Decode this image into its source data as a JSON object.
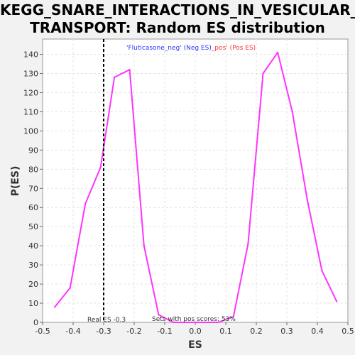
{
  "chart_data": {
    "type": "line",
    "title_line1": "KEGG_SNARE_INTERACTIONS_IN_VESICULAR_",
    "title_line2": "TRANSPORT: Random ES distribution",
    "xlabel": "ES",
    "ylabel": "P(ES)",
    "xlim": [
      -0.5,
      0.5
    ],
    "ylim": [
      0,
      148
    ],
    "x_ticks": [
      -0.5,
      -0.4,
      -0.3,
      -0.2,
      -0.1,
      0.0,
      0.1,
      0.2,
      0.3,
      0.4,
      0.5
    ],
    "x_tick_labels": [
      "-0.5",
      "-0.4",
      "-0.3",
      "-0.2",
      "-0.1",
      "0.0",
      "0.1",
      "0.2",
      "0.3",
      "0.4",
      "0.5"
    ],
    "y_ticks": [
      0,
      10,
      20,
      30,
      40,
      50,
      60,
      70,
      80,
      90,
      100,
      110,
      120,
      130,
      140
    ],
    "y_tick_labels": [
      "0",
      "10",
      "20",
      "30",
      "40",
      "50",
      "60",
      "70",
      "80",
      "90",
      "100",
      "110",
      "120",
      "130",
      "140"
    ],
    "grid": true,
    "series": [
      {
        "color": "#ff33ff",
        "x": [
          -0.46,
          -0.41,
          -0.36,
          -0.31,
          -0.265,
          -0.215,
          -0.168,
          -0.12,
          -0.072,
          0.075,
          0.125,
          0.173,
          0.222,
          0.27,
          0.318,
          0.367,
          0.415,
          0.463
        ],
        "y": [
          8,
          18,
          62,
          81,
          128,
          132,
          40,
          4,
          0,
          0,
          3,
          41,
          130,
          141,
          110,
          64,
          27,
          11
        ]
      }
    ],
    "real_es": -0.3,
    "real_es_color": "#000000",
    "legend": {
      "neg_text": "'Fluticasone_neg' (Neg ES)",
      "neg_color": "#3333ff",
      "pos_text": "_pos' (Pos ES)",
      "pos_color": "#ff3333"
    },
    "annotation_real_es": "Real ES -0.3",
    "annotation_sets_pos": "Sets with pos scores: 53%"
  }
}
